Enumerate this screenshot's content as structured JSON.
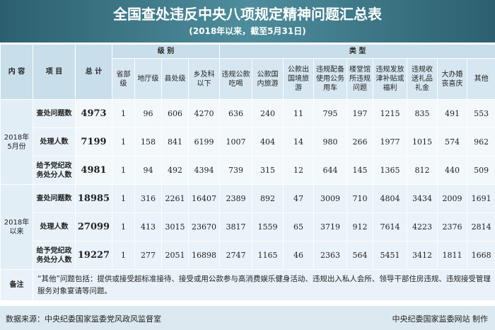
{
  "header": {
    "title": "全国查处违反中央八项规定精神问题汇总表",
    "subtitle": "(2018年以来，截至5月31日)"
  },
  "table": {
    "columns": {
      "content": "内 容",
      "item": "项 目",
      "total": "总 计",
      "level": "级 别",
      "type": "类 型",
      "levels": [
        "省部级",
        "地厅级",
        "县处级",
        "乡及科以下"
      ],
      "types": [
        "违规公款吃喝",
        "公款国内旅游",
        "公款出国境旅游",
        "违规配备使用公务用车",
        "楼堂馆所违规问题",
        "违规发放津补贴或福利",
        "违规收送礼品礼金",
        "大办婚丧喜庆",
        "其他"
      ]
    },
    "groups": [
      {
        "label": "2018年5月份",
        "rows": [
          {
            "item": "查处问题数",
            "values": [
              4973,
              1,
              96,
              606,
              4270,
              636,
              240,
              11,
              795,
              197,
              1215,
              835,
              491,
              553
            ]
          },
          {
            "item": "处理人数",
            "values": [
              7199,
              1,
              158,
              841,
              6199,
              1007,
              404,
              14,
              980,
              266,
              1977,
              1015,
              574,
              962
            ]
          },
          {
            "item": "给予党纪政务处分人数",
            "values": [
              4981,
              1,
              94,
              492,
              4394,
              739,
              315,
              12,
              644,
              145,
              1365,
              812,
              440,
              509
            ]
          }
        ]
      },
      {
        "label": "2018年以来",
        "rows": [
          {
            "item": "查处问题数",
            "values": [
              18985,
              1,
              316,
              2261,
              16407,
              2389,
              892,
              47,
              3009,
              710,
              4804,
              3434,
              2009,
              1691
            ]
          },
          {
            "item": "处理人数",
            "values": [
              27099,
              1,
              413,
              3015,
              23670,
              3817,
              1559,
              65,
              3719,
              912,
              7614,
              4223,
              2376,
              2814
            ]
          },
          {
            "item": "给予党纪政务处分人数",
            "values": [
              19227,
              1,
              277,
              2051,
              16898,
              2747,
              1165,
              46,
              2363,
              564,
              5451,
              3412,
              1811,
              1668
            ]
          }
        ]
      }
    ]
  },
  "note": {
    "label": "备注",
    "text": "“其他”问题包括：提供或接受超标准接待、接受或用公款参与高消费娱乐健身活动、违规出入私人会所、领导干部住房违规、违规接受管理服务对象宴请等问题。"
  },
  "footer": {
    "source": "数据来源：中央纪委国家监委党风政风监督室",
    "credit": "中央纪委国家监委网站 制作"
  }
}
